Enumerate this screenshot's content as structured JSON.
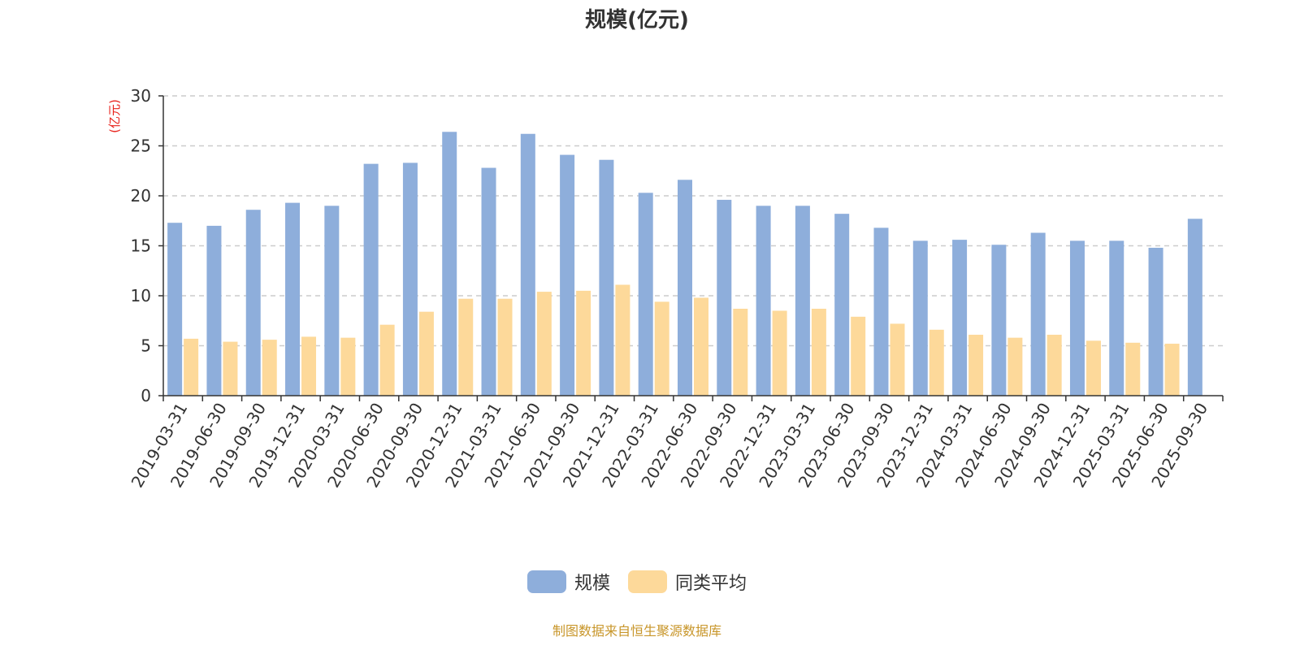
{
  "chart_data": {
    "type": "bar",
    "title": "规模(亿元)",
    "ylabel": "(亿元)",
    "xlabel": "",
    "ylim": [
      0,
      30
    ],
    "yticks": [
      0,
      5,
      10,
      15,
      20,
      25,
      30
    ],
    "grid": true,
    "legend_position": "bottom-center",
    "categories": [
      "2019-03-31",
      "2019-06-30",
      "2019-09-30",
      "2019-12-31",
      "2020-03-31",
      "2020-06-30",
      "2020-09-30",
      "2020-12-31",
      "2021-03-31",
      "2021-06-30",
      "2021-09-30",
      "2021-12-31",
      "2022-03-31",
      "2022-06-30",
      "2022-09-30",
      "2022-12-31",
      "2023-03-31",
      "2023-06-30",
      "2023-09-30",
      "2023-12-31",
      "2024-03-31",
      "2024-06-30",
      "2024-09-30",
      "2024-12-31",
      "2025-03-31",
      "2025-06-30",
      "2025-09-30"
    ],
    "series": [
      {
        "name": "规模",
        "color": "#8eaedb",
        "values": [
          17.3,
          17.0,
          18.6,
          19.3,
          19.0,
          23.2,
          23.3,
          26.4,
          22.8,
          26.2,
          24.1,
          23.6,
          20.3,
          21.6,
          19.6,
          19.0,
          19.0,
          18.2,
          16.8,
          15.5,
          15.6,
          15.1,
          16.3,
          15.5,
          15.5,
          14.8,
          17.7
        ]
      },
      {
        "name": "同类平均",
        "color": "#fdd99a",
        "values": [
          5.7,
          5.4,
          5.6,
          5.9,
          5.8,
          7.1,
          8.4,
          9.7,
          9.7,
          10.4,
          10.5,
          11.1,
          9.4,
          9.8,
          8.7,
          8.5,
          8.7,
          7.9,
          7.2,
          6.6,
          6.1,
          5.8,
          6.1,
          5.5,
          5.3,
          5.2,
          null
        ]
      }
    ]
  },
  "footer": {
    "source_note": "制图数据来自恒生聚源数据库"
  },
  "colors": {
    "axis": "#333333",
    "grid": "#cccccc",
    "ylabel": "#e8211a",
    "title": "#333333",
    "source_note": "#c8962a"
  }
}
